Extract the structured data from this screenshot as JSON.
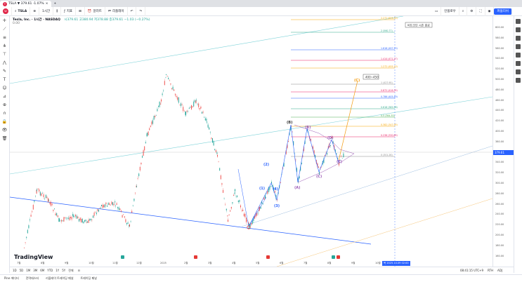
{
  "browser": {
    "tab_title": "TSLA ▼ 379.61 -1.07%",
    "new_tab": "+"
  },
  "toolbar": {
    "symbol": "TSLA",
    "interval": "1시간",
    "indicators": "지표",
    "alert": "알러트",
    "replay": "리플레이",
    "user_button": "인플로우",
    "publish": "퍼블리쉬"
  },
  "legend": {
    "title": "Tesla, Inc. · 1시간 · NASDAQ",
    "ohlc": "시379.61 고380.94 저378.88 종379.61 −1.03 (−0.27%)",
    "sub": "0.00"
  },
  "annotations": {
    "target_box": "400~450",
    "note_box": "비트코인 시즌 종료"
  },
  "fib_levels": [
    {
      "label": "2.272 (606.30)",
      "color": "#f7a600"
    },
    {
      "label": "2 (560.77)",
      "color": "#2fa88a"
    },
    {
      "label": "1.618 (497.20)",
      "color": "#2962ff"
    },
    {
      "label": "1.414 (471.27)",
      "color": "#e91e63"
    },
    {
      "label": "1.272 (455.10)",
      "color": "#f7a600"
    },
    {
      "label": "1 (427.95)",
      "color": "#888888"
    },
    {
      "label": "0.872 (416.35)",
      "color": "#e91e63"
    },
    {
      "label": "0.786 (405.49)",
      "color": "#2962ff"
    },
    {
      "label": "0.618 (385.98)",
      "color": "#2fa88a"
    },
    {
      "label": "0.5 (364.35)",
      "color": "#4caf50"
    },
    {
      "label": "0.382 (347.95)",
      "color": "#f7a600"
    },
    {
      "label": "0.236 (330.65)",
      "color": "#e91e63"
    },
    {
      "label": "0 (301.26)",
      "color": "#888888"
    }
  ],
  "waves": [
    "(1)",
    "(2)",
    "(3)",
    "(4)",
    "(5)",
    "(A)",
    "(B)",
    "(C)",
    "(D)",
    "(E)",
    "(B)",
    "(C)"
  ],
  "price_axis": {
    "current_price": "379.61",
    "labels": [
      "600.00",
      "580.00",
      "560.00",
      "540.00",
      "520.00",
      "500.00",
      "480.00",
      "460.00",
      "440.00",
      "420.00",
      "400.00",
      "380.00",
      "360.00",
      "340.00",
      "320.00",
      "300.00",
      "280.00",
      "260.00",
      "240.00",
      "220.00",
      "200.00",
      "180.00",
      "160.00"
    ]
  },
  "time_axis": {
    "labels": [
      "7월",
      "8월",
      "9월",
      "10월",
      "11월",
      "12월",
      "2025",
      "2월",
      "3월",
      "4월",
      "5월",
      "6월",
      "7월",
      "8월",
      "9월",
      "10월"
    ],
    "crosshair_date": "목 2025.10.09 02:00"
  },
  "bottom_bar": {
    "ranges": [
      "1D",
      "5D",
      "1M",
      "3M",
      "6M",
      "YTD",
      "1Y",
      "5Y",
      "전체"
    ],
    "clock": "08:41:15 UTC+9",
    "session": "RTH",
    "adj": "ADJ"
  },
  "footer_tabs": [
    "Pine 에디터",
    "전략테스터",
    "리플레이 트레이딩 패널",
    "트레이딩 패널"
  ],
  "watermark": "TradingView"
}
